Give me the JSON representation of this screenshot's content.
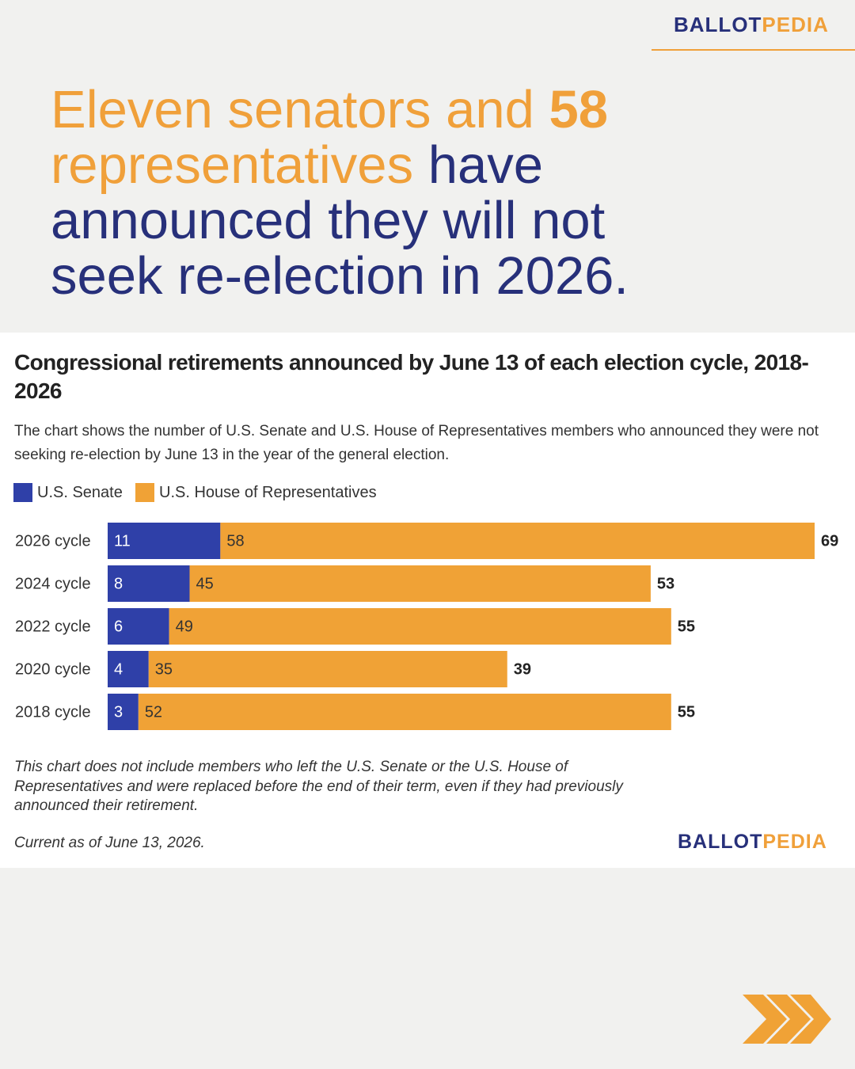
{
  "logo": {
    "ballot": "BALLOT",
    "pedia": "PEDIA"
  },
  "headline": [
    "Eleven senators and",
    "58",
    "representatives",
    "have announced they will not seek re-election in 2026."
  ],
  "chart_data": {
    "type": "stacked-bar",
    "title": "Congressional retirements announced by June 13 of each election cycle, 2018-2026",
    "subtitle": "The chart shows the number of U.S. Senate and U.S. House of Representatives members who announced they were not seeking re-election by June 13 in the year of the general election.",
    "categories": [
      "2026 cycle",
      "2024 cycle",
      "2022 cycle",
      "2020 cycle",
      "2018 cycle"
    ],
    "series": [
      {
        "name": "U.S. Senate",
        "color": "#2f40a8",
        "label_color": "#ffffff",
        "values": [
          11,
          8,
          6,
          4,
          3
        ]
      },
      {
        "name": "U.S. House of Representatives",
        "color": "#f0a236",
        "label_color": "#333333",
        "values": [
          58,
          45,
          49,
          35,
          52
        ]
      }
    ],
    "totals": [
      69,
      53,
      55,
      39,
      55
    ],
    "note": "This chart does not include members who left the U.S. Senate or the U.S. House of Representatives and were replaced before the end of their term, even if they had previously announced their retirement.",
    "date_note": "Current as of June 13, 2026."
  }
}
